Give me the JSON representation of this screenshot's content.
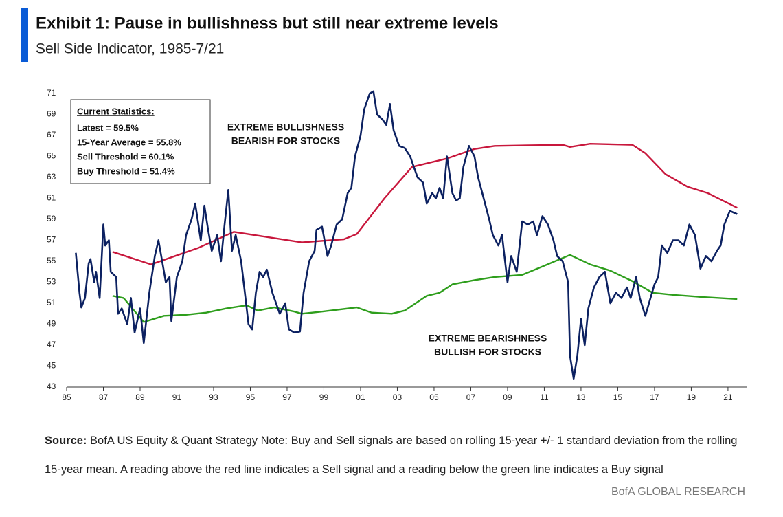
{
  "chart_data": {
    "type": "line",
    "title": "Exhibit 1: Pause in bullishness but still near extreme levels",
    "subtitle": "Sell Side Indicator, 1985-7/21",
    "stats_title": "Current Statistics:",
    "stats": [
      "Latest = 59.5%",
      "15-Year Average = 55.8%",
      "Sell Threshold = 60.1%",
      "Buy Threshold = 51.4%"
    ],
    "annotations": [
      [
        "EXTREME BULLISHNESS",
        "BEARISH FOR STOCKS"
      ],
      [
        "EXTREME BEARISHNESS",
        "BULLISH FOR STOCKS"
      ]
    ],
    "source_label": "Source:",
    "source": "BofA US Equity & Quant Strategy Note: Buy and Sell signals are based on rolling 15-year +/- 1 standard deviation from the rolling 15-year mean. A reading above the red line indicates a Sell signal and a reading below the green line indicates a Buy signal",
    "footer": "BofA GLOBAL RESEARCH",
    "xlim": [
      1985,
      2022.05
    ],
    "ylim": [
      43,
      71
    ],
    "xticks": [
      {
        "value": 1985,
        "label": "85"
      },
      {
        "value": 1987,
        "label": "87"
      },
      {
        "value": 1989,
        "label": "89"
      },
      {
        "value": 1991,
        "label": "91"
      },
      {
        "value": 1993,
        "label": "93"
      },
      {
        "value": 1995,
        "label": "95"
      },
      {
        "value": 1997,
        "label": "97"
      },
      {
        "value": 1999,
        "label": "99"
      },
      {
        "value": 2001,
        "label": "01"
      },
      {
        "value": 2003,
        "label": "03"
      },
      {
        "value": 2005,
        "label": "05"
      },
      {
        "value": 2007,
        "label": "07"
      },
      {
        "value": 2009,
        "label": "09"
      },
      {
        "value": 2011,
        "label": "11"
      },
      {
        "value": 2013,
        "label": "13"
      },
      {
        "value": 2015,
        "label": "15"
      },
      {
        "value": 2017,
        "label": "17"
      },
      {
        "value": 2019,
        "label": "19"
      },
      {
        "value": 2021,
        "label": "21"
      }
    ],
    "yticks": [
      43,
      45,
      47,
      49,
      51,
      53,
      55,
      57,
      59,
      61,
      63,
      65,
      67,
      69,
      71
    ],
    "grid": false,
    "series": [
      {
        "color": "#0c2161",
        "x": [
          1985.5,
          1985.7,
          1985.8,
          1986.0,
          1986.2,
          1986.3,
          1986.5,
          1986.6,
          1986.8,
          1987.0,
          1987.1,
          1987.3,
          1987.4,
          1987.7,
          1987.8,
          1988.0,
          1988.3,
          1988.5,
          1988.7,
          1989.0,
          1989.2,
          1989.5,
          1989.8,
          1990.0,
          1990.2,
          1990.4,
          1990.6,
          1990.7,
          1991.0,
          1991.3,
          1991.5,
          1991.8,
          1992.0,
          1992.3,
          1992.5,
          1992.7,
          1992.9,
          1993.2,
          1993.4,
          1993.6,
          1993.8,
          1994.0,
          1994.2,
          1994.5,
          1994.7,
          1994.9,
          1995.1,
          1995.3,
          1995.5,
          1995.7,
          1995.9,
          1996.2,
          1996.4,
          1996.6,
          1996.9,
          1997.1,
          1997.4,
          1997.7,
          1997.9,
          1998.2,
          1998.5,
          1998.6,
          1998.9,
          1999.2,
          1999.4,
          1999.7,
          2000.0,
          2000.3,
          2000.5,
          2000.7,
          2001.0,
          2001.2,
          2001.5,
          2001.7,
          2001.9,
          2002.2,
          2002.4,
          2002.6,
          2002.8,
          2003.1,
          2003.4,
          2003.7,
          2003.9,
          2004.1,
          2004.4,
          2004.6,
          2004.9,
          2005.1,
          2005.3,
          2005.5,
          2005.7,
          2006.0,
          2006.2,
          2006.4,
          2006.6,
          2006.9,
          2007.2,
          2007.4,
          2007.7,
          2008.0,
          2008.2,
          2008.5,
          2008.7,
          2009.0,
          2009.2,
          2009.5,
          2009.8,
          2010.1,
          2010.4,
          2010.6,
          2010.9,
          2011.2,
          2011.5,
          2011.7,
          2012.0,
          2012.3,
          2012.4,
          2012.6,
          2012.8,
          2013.0,
          2013.2,
          2013.4,
          2013.7,
          2014.0,
          2014.3,
          2014.6,
          2014.9,
          2015.2,
          2015.5,
          2015.7,
          2016.0,
          2016.2,
          2016.5,
          2016.7,
          2017.0,
          2017.2,
          2017.4,
          2017.7,
          2018.0,
          2018.3,
          2018.6,
          2018.9,
          2019.2,
          2019.5,
          2019.8,
          2020.1,
          2020.4,
          2020.6,
          2020.8,
          2021.1,
          2021.5
        ],
        "values": [
          55.8,
          52,
          50.6,
          51.5,
          54.8,
          55.2,
          53,
          54,
          51.5,
          58.5,
          56.5,
          57,
          54,
          53.5,
          50,
          50.5,
          49,
          51.5,
          48.2,
          50.5,
          47.2,
          52,
          55.5,
          57,
          55,
          53,
          53.5,
          49.3,
          53.5,
          55,
          57.5,
          59,
          60.5,
          57,
          60.3,
          58,
          56,
          57.5,
          55,
          58.5,
          61.8,
          56,
          57.5,
          55,
          52,
          49,
          48.5,
          52,
          54,
          53.5,
          54.2,
          52,
          51,
          50,
          51,
          48.5,
          48.2,
          48.3,
          52,
          55,
          56,
          58,
          58.3,
          55.5,
          56.5,
          58.5,
          59,
          61.5,
          62,
          65,
          67,
          69.5,
          71,
          71.2,
          69,
          68.5,
          68,
          70,
          67.5,
          66,
          65.8,
          65,
          64,
          63,
          62.5,
          60.5,
          61.5,
          61,
          62,
          61,
          65,
          61.5,
          60.8,
          61,
          64,
          66,
          65,
          63,
          61,
          59,
          57.5,
          56.5,
          57.5,
          53,
          55.5,
          54,
          58.8,
          58.5,
          58.8,
          57.5,
          59.3,
          58.5,
          57,
          55.5,
          55,
          53,
          46,
          43.8,
          46,
          49.5,
          47,
          50.5,
          52.5,
          53.5,
          54,
          51,
          52,
          51.5,
          52.5,
          51.5,
          53.5,
          51.5,
          49.8,
          51,
          52.8,
          53.5,
          56.5,
          55.8,
          57,
          57,
          56.5,
          58.5,
          57.5,
          54.3,
          55.5,
          55,
          56,
          56.5,
          58.5,
          59.8,
          59.5
        ]
      },
      {
        "color": "#c8173c",
        "x": [
          1987.5,
          1989.6,
          1992.2,
          1994.1,
          1997.8,
          2000.1,
          2000.8,
          2002.3,
          2003.8,
          2005.7,
          2007.2,
          2008.3,
          2012.0,
          2012.4,
          2013.5,
          2015.8,
          2016.5,
          2017.6,
          2018.8,
          2019.9,
          2021.5
        ],
        "values": [
          55.9,
          54.7,
          56.3,
          57.8,
          56.8,
          57.1,
          57.6,
          61,
          64,
          64.8,
          65.7,
          66,
          66.1,
          65.9,
          66.2,
          66.1,
          65.3,
          63.3,
          62.1,
          61.5,
          60.1
        ]
      },
      {
        "color": "#2e9e1c",
        "x": [
          1987.5,
          1988.1,
          1989.2,
          1990.3,
          1991.5,
          1992.6,
          1993.7,
          1994.8,
          1995.4,
          1996.3,
          1997.4,
          1997.8,
          1998.9,
          2000.8,
          2001.6,
          2002.7,
          2003.4,
          2004.6,
          2005.3,
          2006.0,
          2007.2,
          2008.3,
          2009.8,
          2010.9,
          2012.4,
          2013.5,
          2014.6,
          2015.8,
          2016.9,
          2018.0,
          2019.5,
          2021.5
        ],
        "values": [
          51.7,
          51.5,
          49.2,
          49.8,
          49.9,
          50.1,
          50.5,
          50.8,
          50.3,
          50.6,
          50.2,
          50,
          50.2,
          50.6,
          50.1,
          50,
          50.3,
          51.7,
          52,
          52.8,
          53.2,
          53.5,
          53.7,
          54.5,
          55.6,
          54.7,
          54.1,
          53.1,
          52,
          51.8,
          51.6,
          51.4
        ]
      }
    ]
  }
}
